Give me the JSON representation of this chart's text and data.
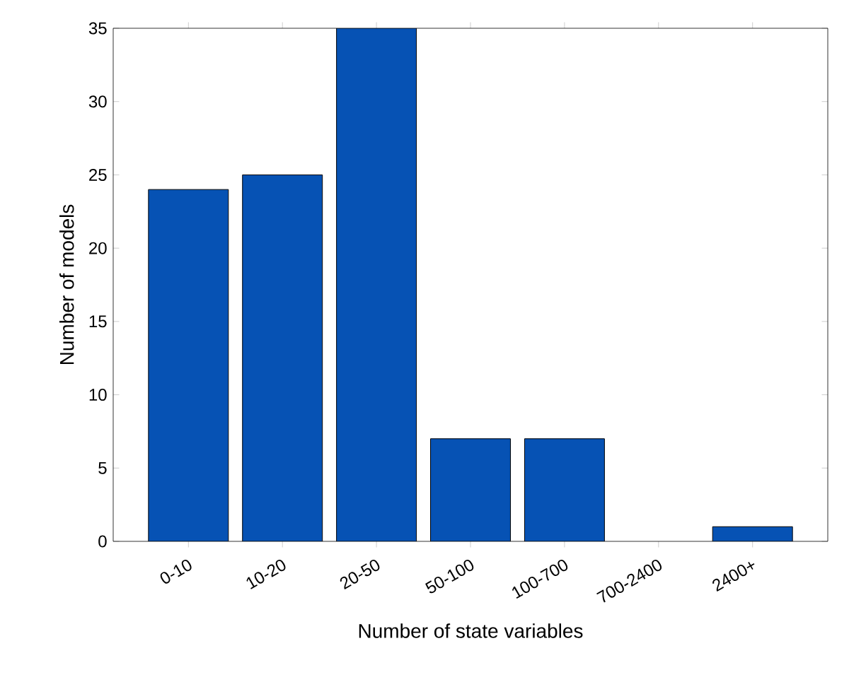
{
  "chart_data": {
    "type": "bar",
    "xlabel": "Number of state variables",
    "ylabel": "Number of models",
    "categories": [
      "0-10",
      "10-20",
      "20-50",
      "50-100",
      "100-700",
      "700-2400",
      "2400+"
    ],
    "values": [
      24,
      25,
      35,
      7,
      7,
      0,
      1
    ],
    "color": "#0652b4",
    "ylim": [
      0,
      35
    ],
    "yticks": [
      0,
      5,
      10,
      15,
      20,
      25,
      30,
      35
    ]
  }
}
